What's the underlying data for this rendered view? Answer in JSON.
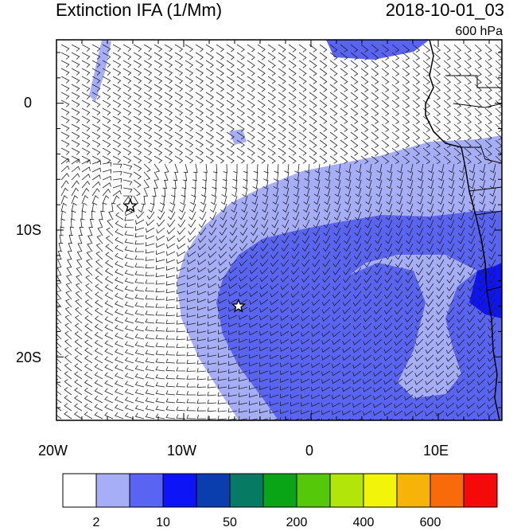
{
  "header": {
    "title": "Extinction IFA (1/Mm)",
    "datetime": "2018-10-01_03",
    "level": "600 hPa"
  },
  "axes": {
    "lon_ticks": [
      "20W",
      "10W",
      "0",
      "10E"
    ],
    "lat_ticks": [
      "0",
      "10S",
      "20S"
    ]
  },
  "colorbar": {
    "colors": [
      "#ffffff",
      "#a6aef8",
      "#5a64f2",
      "#0d14f5",
      "#0a3dad",
      "#067a63",
      "#0aa516",
      "#55c80a",
      "#b2e60a",
      "#f2f50a",
      "#f8b30a",
      "#f86a0a",
      "#f50a0a"
    ],
    "labels": [
      "2",
      "10",
      "50",
      "200",
      "400",
      "600"
    ]
  },
  "markers": [
    {
      "name": "star-marker-west",
      "lon": -14.2,
      "lat": -8.1
    },
    {
      "name": "star-marker-south",
      "lon": -5.7,
      "lat": -16.0
    }
  ]
}
